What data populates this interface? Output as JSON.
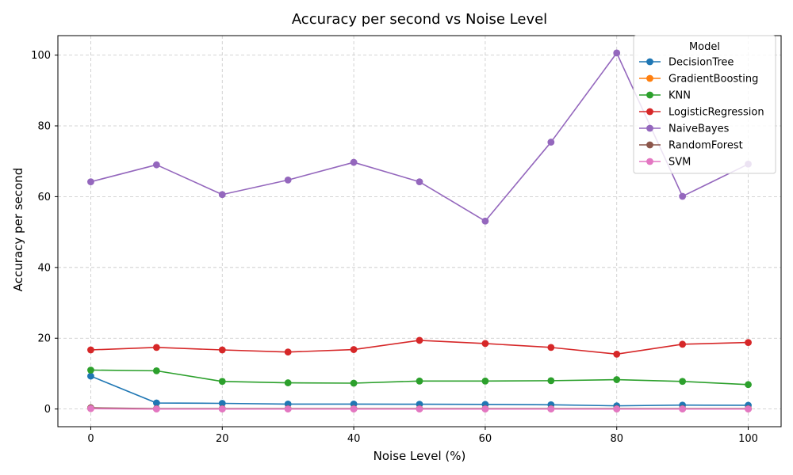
{
  "chart_data": {
    "type": "line",
    "title": "Accuracy per second vs Noise Level",
    "xlabel": "Noise Level (%)",
    "ylabel": "Accuracy per second",
    "x": [
      0,
      10,
      20,
      30,
      40,
      50,
      60,
      70,
      80,
      90,
      100
    ],
    "xlim": [
      -5,
      105
    ],
    "ylim": [
      -5,
      105.5
    ],
    "xticks": [
      0,
      20,
      40,
      60,
      80,
      100
    ],
    "yticks": [
      0,
      20,
      40,
      60,
      80,
      100
    ],
    "grid": true,
    "legend": {
      "title": "Model",
      "placement": "top-right"
    },
    "series": [
      {
        "name": "DecisionTree",
        "color": "#1f77b4",
        "values": [
          9.3,
          1.7,
          1.6,
          1.4,
          1.4,
          1.35,
          1.3,
          1.2,
          0.9,
          1.1,
          1.05
        ]
      },
      {
        "name": "GradientBoosting",
        "color": "#ff7f0e",
        "values": [
          0.15,
          0.05,
          0.05,
          0.05,
          0.05,
          0.05,
          0.05,
          0.05,
          0.05,
          0.05,
          0.05
        ]
      },
      {
        "name": "KNN",
        "color": "#2ca02c",
        "values": [
          11.0,
          10.8,
          7.8,
          7.4,
          7.3,
          7.9,
          7.9,
          8.0,
          8.3,
          7.8,
          6.9
        ]
      },
      {
        "name": "LogisticRegression",
        "color": "#d62728",
        "values": [
          16.7,
          17.4,
          16.7,
          16.1,
          16.8,
          19.4,
          18.5,
          17.4,
          15.5,
          18.3,
          18.8
        ]
      },
      {
        "name": "NaiveBayes",
        "color": "#9467bd",
        "values": [
          64.2,
          69.0,
          60.6,
          64.7,
          69.7,
          64.2,
          53.1,
          75.4,
          100.6,
          60.1,
          69.2
        ]
      },
      {
        "name": "RandomForest",
        "color": "#8c564b",
        "values": [
          0.35,
          0.1,
          0.1,
          0.1,
          0.1,
          0.1,
          0.1,
          0.1,
          0.1,
          0.1,
          0.1
        ]
      },
      {
        "name": "SVM",
        "color": "#e377c2",
        "values": [
          0.1,
          0.0,
          0.0,
          0.0,
          0.0,
          0.0,
          0.0,
          0.0,
          0.0,
          0.0,
          0.0
        ]
      }
    ]
  }
}
